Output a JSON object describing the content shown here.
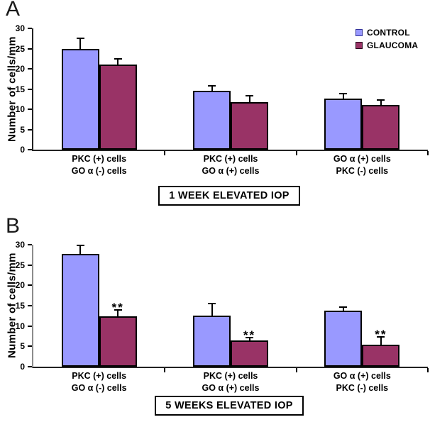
{
  "legend": {
    "items": [
      {
        "label": "CONTROL",
        "fill": "#9999FF",
        "border": "#333399"
      },
      {
        "label": "GLAUCOMA",
        "fill": "#993366",
        "border": "#26081a"
      }
    ]
  },
  "chart_data": [
    {
      "panel": "A",
      "type": "bar",
      "title": "1 WEEK ELEVATED IOP",
      "ylabel": "Number of cells/mm",
      "xlabel": "",
      "ylim": [
        0,
        30
      ],
      "yticks": [
        0,
        5,
        10,
        15,
        20,
        25,
        30
      ],
      "grid": false,
      "legend_position": "top-right",
      "categories": [
        [
          "PKC (+) cells",
          "GO α (-) cells"
        ],
        [
          "PKC (+) cells",
          "GO α (+) cells"
        ],
        [
          "GO α (+) cells",
          "PKC (-) cells"
        ]
      ],
      "series": [
        {
          "name": "CONTROL",
          "color": "#9999FF",
          "values": [
            24.9,
            14.5,
            12.7
          ],
          "errors": [
            2.5,
            1.2,
            1.0
          ]
        },
        {
          "name": "GLAUCOMA",
          "color": "#993366",
          "values": [
            21.1,
            11.8,
            11.0
          ],
          "errors": [
            1.1,
            1.3,
            1.1
          ]
        }
      ],
      "significance": [
        "",
        "",
        ""
      ]
    },
    {
      "panel": "B",
      "type": "bar",
      "title": "5 WEEKS ELEVATED IOP",
      "ylabel": "Number of cells/mm",
      "xlabel": "",
      "ylim": [
        0,
        30
      ],
      "yticks": [
        0,
        5,
        10,
        15,
        20,
        25,
        30
      ],
      "grid": false,
      "legend_position": "none",
      "categories": [
        [
          "PKC (+) cells",
          "GO α (-) cells"
        ],
        [
          "PKC (+) cells",
          "GO α (+) cells"
        ],
        [
          "GO α (+) cells",
          "PKC (-) cells"
        ]
      ],
      "series": [
        {
          "name": "CONTROL",
          "color": "#9999FF",
          "values": [
            27.7,
            12.6,
            13.8
          ],
          "errors": [
            1.9,
            2.8,
            0.7
          ]
        },
        {
          "name": "GLAUCOMA",
          "color": "#993366",
          "values": [
            12.3,
            6.5,
            5.4
          ],
          "errors": [
            1.4,
            0.4,
            1.7
          ]
        }
      ],
      "significance": [
        "**",
        "**",
        "**"
      ]
    }
  ]
}
